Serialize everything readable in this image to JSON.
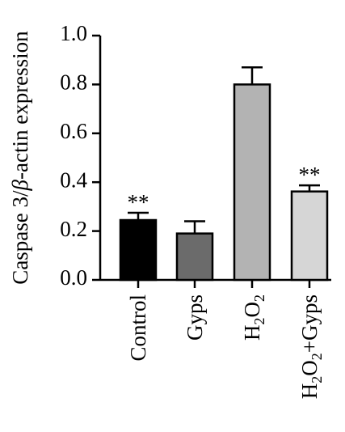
{
  "chart_data": {
    "type": "bar",
    "ylabel_parts": [
      {
        "text": "Caspase 3/",
        "italic": false
      },
      {
        "text": "β",
        "italic": true
      },
      {
        "text": "-actin expression",
        "italic": false
      }
    ],
    "ylim": [
      0,
      1.0
    ],
    "yticks": [
      "0.0",
      "0.2",
      "0.4",
      "0.6",
      "0.8",
      "1.0"
    ],
    "categories": [
      {
        "label": "Control",
        "parts": [
          {
            "text": "Control"
          }
        ]
      },
      {
        "label": "Gyps",
        "parts": [
          {
            "text": "Gyps"
          }
        ]
      },
      {
        "label": "H2O2",
        "parts": [
          {
            "text": "H"
          },
          {
            "text": "2",
            "sub": true
          },
          {
            "text": "O"
          },
          {
            "text": "2",
            "sub": true
          }
        ]
      },
      {
        "label": "H2O2+Gyps",
        "parts": [
          {
            "text": "H"
          },
          {
            "text": "2",
            "sub": true
          },
          {
            "text": "O"
          },
          {
            "text": "2",
            "sub": true
          },
          {
            "text": "+Gyps"
          }
        ]
      }
    ],
    "values": [
      0.245,
      0.19,
      0.8,
      0.362
    ],
    "errors": [
      0.03,
      0.05,
      0.07,
      0.025
    ],
    "bar_colors": [
      "#000000",
      "#6b6b6b",
      "#b3b3b3",
      "#d6d6d6"
    ],
    "significance": [
      "**",
      "",
      "",
      "**"
    ]
  }
}
